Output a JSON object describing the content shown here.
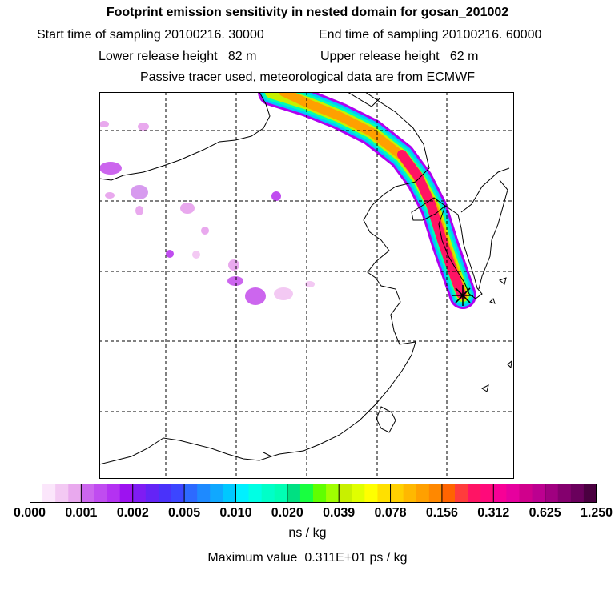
{
  "header": {
    "title": "Footprint emission sensitivity in nested domain for gosan_201002",
    "sampling_start": "Start time of sampling 20100216. 30000",
    "sampling_end": "End time of sampling 20100216. 60000",
    "lower_release": "Lower release height   82 m",
    "upper_release": "Upper release height   62 m",
    "tracer_info": "Passive tracer used, meteorological data are from ECMWF"
  },
  "map": {
    "receptor_marker": "receptor-star",
    "plume_colors": [
      "#b000f0",
      "#00c8ff",
      "#00ffb4",
      "#c8f000",
      "#ffa000",
      "#ff1464"
    ]
  },
  "colorbar": {
    "unit": "ns / kg",
    "tick_labels": [
      "0.000",
      "0.001",
      "0.002",
      "0.005",
      "0.010",
      "0.020",
      "0.039",
      "0.078",
      "0.156",
      "0.312",
      "0.625",
      "1.250"
    ],
    "colors": [
      "#ffffff",
      "#fbe6fb",
      "#f3c9f3",
      "#e9a9ee",
      "#cc66ee",
      "#c04cf0",
      "#b432f2",
      "#9d12f0",
      "#7f1cf3",
      "#6424f6",
      "#4a32fa",
      "#3c46ff",
      "#2d6aff",
      "#1e8aff",
      "#10a8ff",
      "#00c8ff",
      "#00f0ff",
      "#00ffe4",
      "#00ffc8",
      "#00ffb4",
      "#00e082",
      "#18ff40",
      "#60ff00",
      "#a0ff00",
      "#c8f000",
      "#e0ff00",
      "#ffff00",
      "#ffe000",
      "#ffd000",
      "#ffb800",
      "#ffa000",
      "#ff8800",
      "#ff6400",
      "#ff3c3c",
      "#ff1464",
      "#ff0a7a",
      "#f70096",
      "#e6009e",
      "#d0008c",
      "#bc0090",
      "#a00080",
      "#84006e",
      "#6a005c",
      "#4a0040"
    ]
  },
  "footer": {
    "max_value": "Maximum value  0.311E+01 ps / kg"
  }
}
